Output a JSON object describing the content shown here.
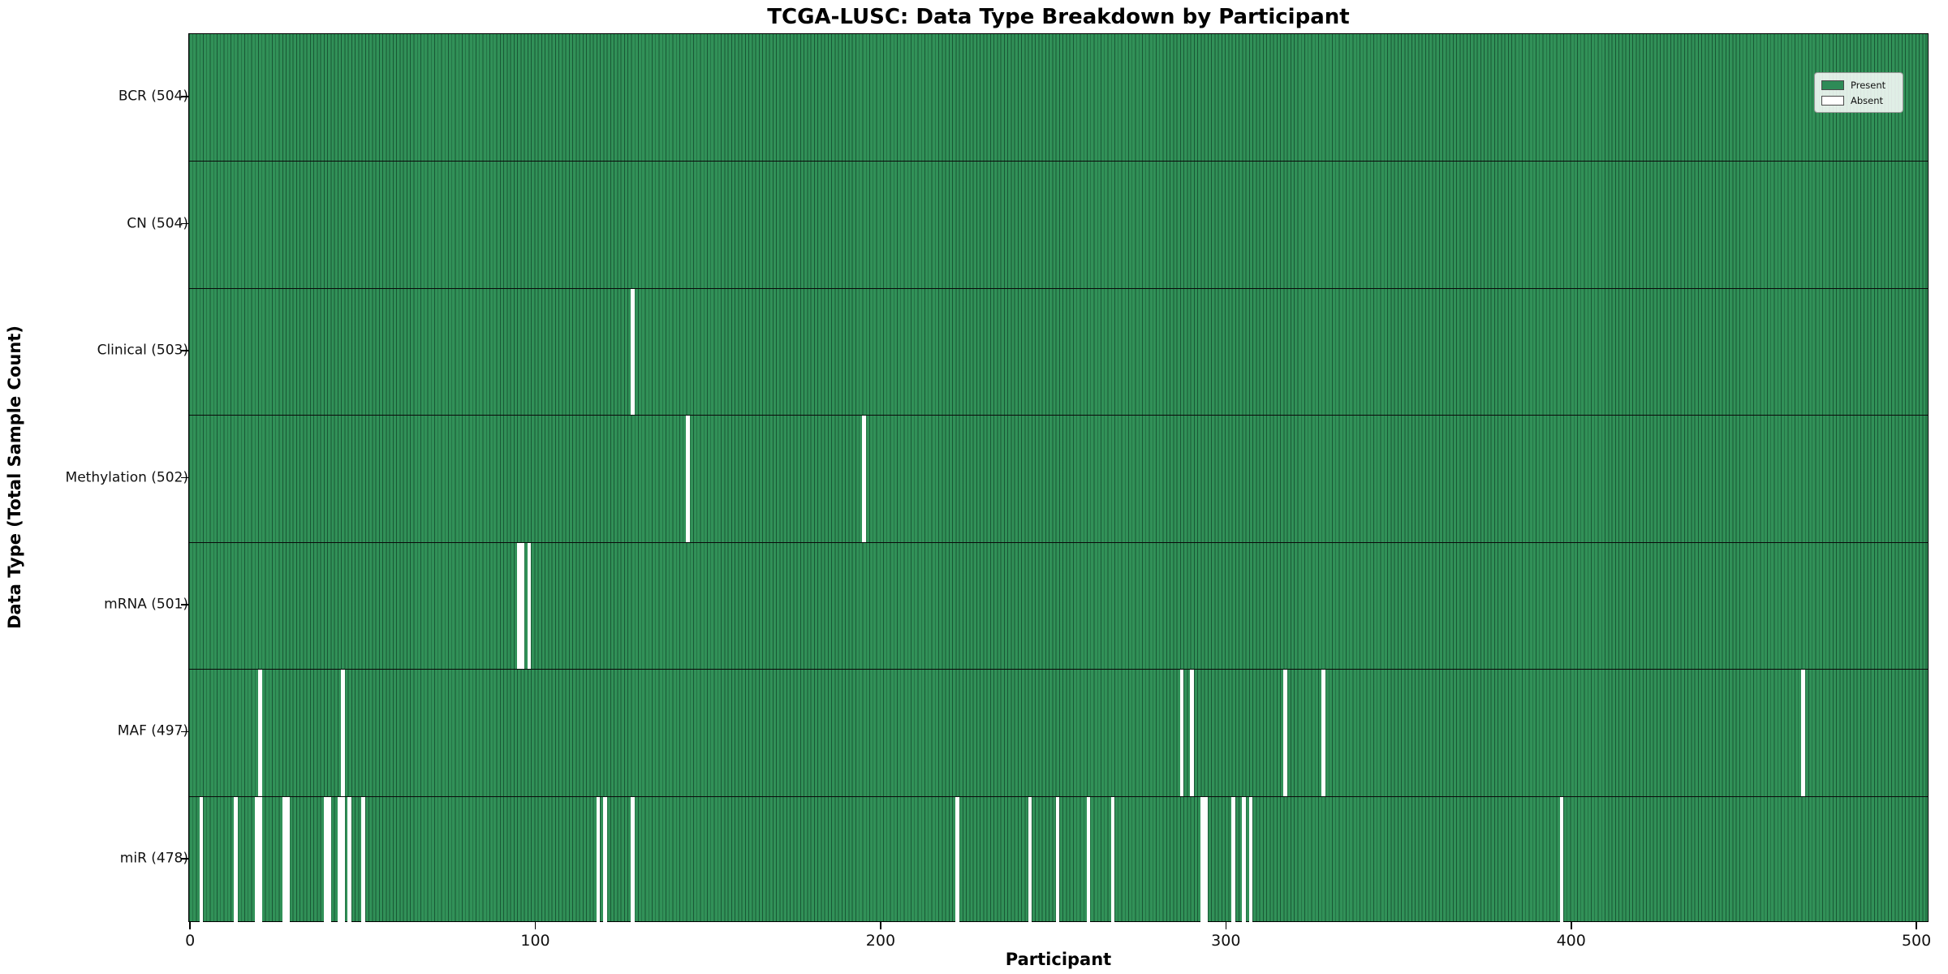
{
  "chart_data": {
    "type": "heatmap",
    "title": "TCGA-LUSC: Data Type Breakdown by Participant",
    "xlabel": "Participant",
    "ylabel": "Data Type (Total Sample Count)",
    "x_ticks": [
      0,
      100,
      200,
      300,
      400,
      500
    ],
    "xlim": [
      -0.5,
      503.5
    ],
    "n_participants": 504,
    "grid": false,
    "legend_position": "upper right",
    "legend": [
      {
        "label": "Present",
        "color": "#2e8b57"
      },
      {
        "label": "Absent",
        "color": "#ffffff"
      }
    ],
    "colors": {
      "present_fill": "#319158",
      "bar_edge": "#1d5c38",
      "absent_fill": "#ffffff",
      "row_separator": "#0a0a0a"
    },
    "rows": [
      {
        "label": "BCR (504)",
        "data_type": "BCR",
        "count": 504,
        "absent_participants": []
      },
      {
        "label": "CN (504)",
        "data_type": "CN",
        "count": 504,
        "absent_participants": []
      },
      {
        "label": "Clinical (503)",
        "data_type": "Clinical",
        "count": 503,
        "absent_participants": [
          128
        ]
      },
      {
        "label": "Methylation (502)",
        "data_type": "Methylation",
        "count": 502,
        "absent_participants": [
          144,
          195
        ]
      },
      {
        "label": "mRNA (501)",
        "data_type": "mRNA",
        "count": 501,
        "absent_participants": [
          95,
          96,
          98
        ]
      },
      {
        "label": "MAF (497)",
        "data_type": "MAF",
        "count": 497,
        "absent_participants": [
          20,
          44,
          287,
          290,
          317,
          328,
          467
        ]
      },
      {
        "label": "miR (478)",
        "data_type": "miR",
        "count": 478,
        "absent_participants": [
          3,
          13,
          19,
          20,
          27,
          28,
          39,
          40,
          43,
          44,
          46,
          50,
          118,
          120,
          128,
          222,
          243,
          251,
          260,
          267,
          293,
          294,
          302,
          305,
          307,
          397
        ]
      }
    ]
  }
}
